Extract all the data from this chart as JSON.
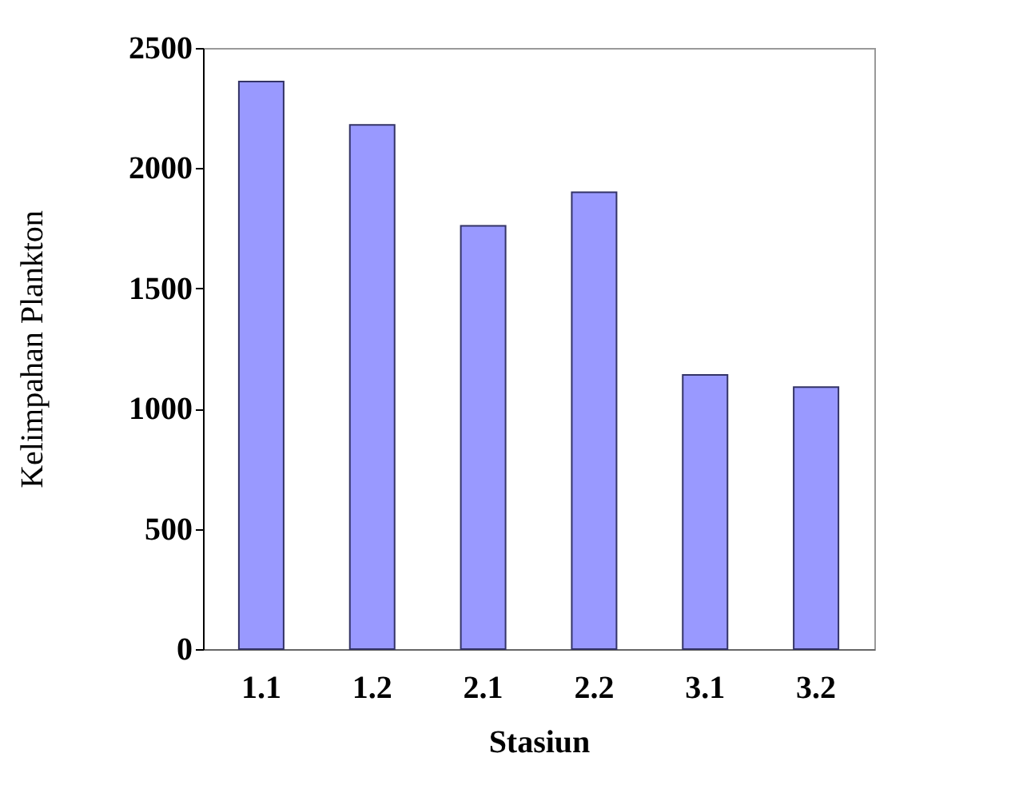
{
  "chart_data": {
    "type": "bar",
    "xlabel": "Stasiun",
    "ylabel": "Kelimpahan Plankton",
    "categories": [
      "1.1",
      "1.2",
      "2.1",
      "2.2",
      "3.1",
      "3.2"
    ],
    "values": [
      2360,
      2180,
      1760,
      1900,
      1140,
      1090
    ],
    "color": "#9999ff",
    "ylim": [
      0,
      2500
    ],
    "yticks": [
      0,
      500,
      1000,
      1500,
      2000,
      2500
    ],
    "grid": false
  }
}
